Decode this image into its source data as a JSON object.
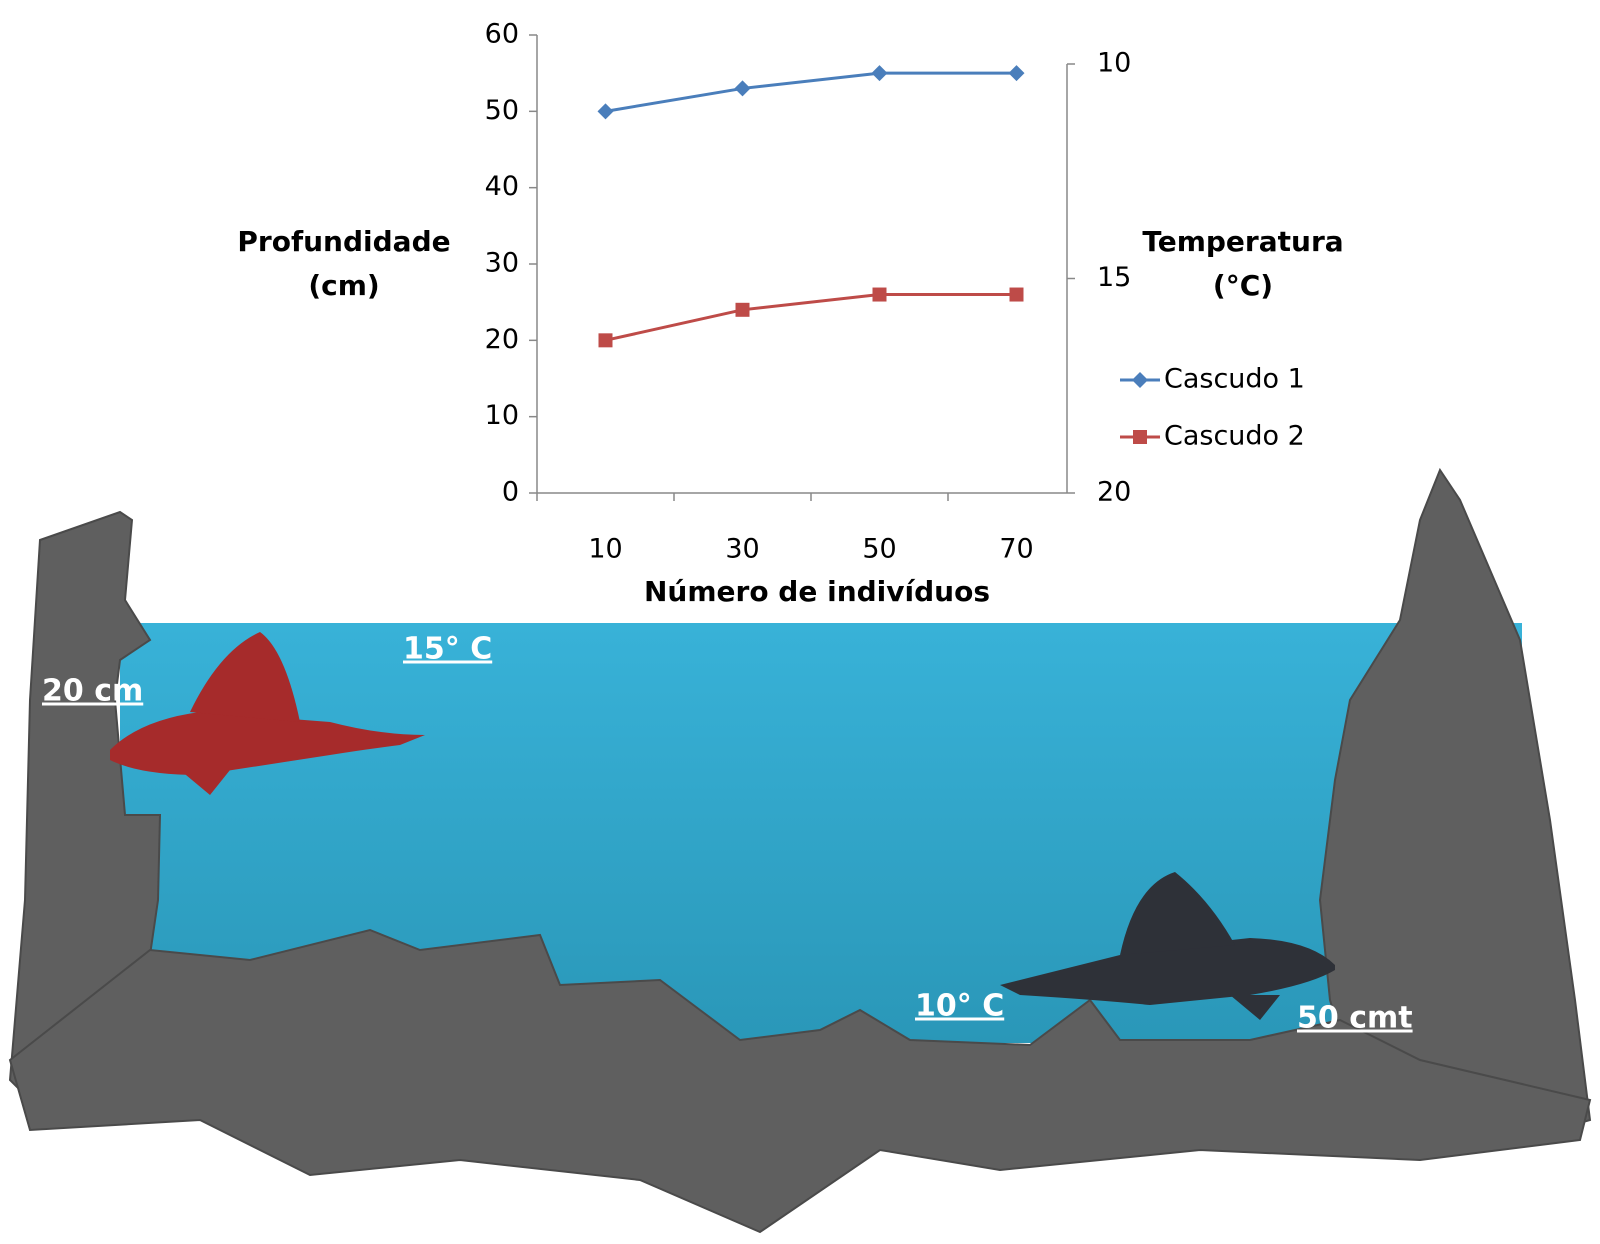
{
  "chart_data": {
    "type": "line",
    "xlabel": "Número de indivíduos",
    "ylabel": "Profundidade (cm)",
    "y2label": "Temperatura (°C)",
    "categories": [
      "10",
      "30",
      "50",
      "70"
    ],
    "series": [
      {
        "name": "Cascudo 1",
        "color": "#4a7ebb",
        "marker": "diamond",
        "values": [
          50,
          53,
          55,
          55
        ]
      },
      {
        "name": "Cascudo 2",
        "color": "#be4b48",
        "marker": "square",
        "values": [
          20,
          24,
          26,
          26
        ]
      }
    ],
    "ylim": [
      0,
      60
    ],
    "yticks": [
      0,
      10,
      20,
      30,
      40,
      50,
      60
    ],
    "y2lim": [
      20,
      10
    ],
    "y2ticks": [
      10,
      15,
      20
    ],
    "legend": "right",
    "annotations": [
      "15° C",
      "20 cm",
      "10° C",
      "50 cmt"
    ]
  }
}
